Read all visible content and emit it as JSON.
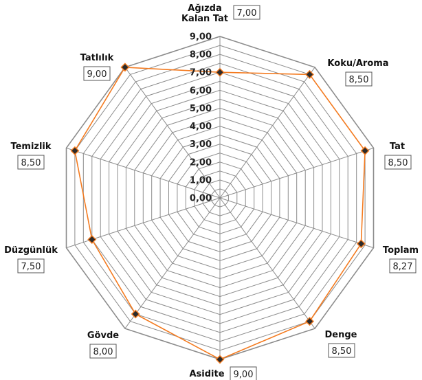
{
  "colors": {
    "series_line": "#F47B20",
    "marker_fill": "#2B2B2B",
    "grid": "#8C8C8C",
    "box_border": "#555555"
  },
  "chart_data": {
    "type": "radar",
    "axis_labels": [
      [
        "Ağızda",
        "Kalan Tat"
      ],
      [
        "Koku/Aroma"
      ],
      [
        "Tat"
      ],
      [
        "Toplam"
      ],
      [
        "Denge"
      ],
      [
        "Asidite"
      ],
      [
        "Gövde"
      ],
      [
        "Düzgünlük"
      ],
      [
        "Temizlik"
      ],
      [
        "Tatlılık"
      ]
    ],
    "values": [
      7.0,
      8.5,
      8.5,
      8.27,
      8.5,
      9.0,
      8.0,
      7.5,
      8.5,
      9.0
    ],
    "value_labels": [
      "7,00",
      "8,50",
      "8,50",
      "8,27",
      "8,50",
      "9,00",
      "8,00",
      "7,50",
      "8,50",
      "9,00"
    ],
    "tick_labels": [
      "0,00",
      "1,00",
      "2,00",
      "3,00",
      "4,00",
      "5,00",
      "6,00",
      "7,00",
      "8,00",
      "9,00"
    ],
    "range": [
      0,
      9
    ],
    "grid_step": 0.5,
    "grid": true,
    "legend": "none"
  }
}
